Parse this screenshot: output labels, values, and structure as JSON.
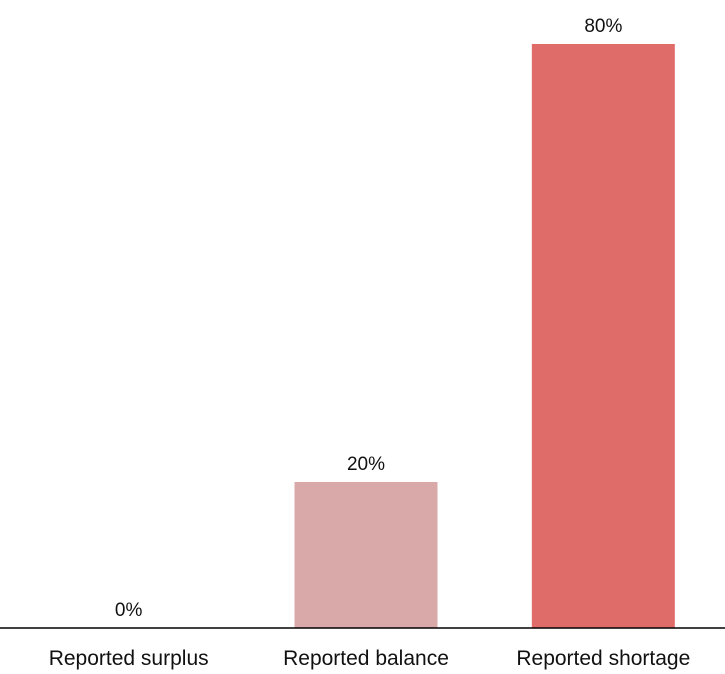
{
  "chart_data": {
    "type": "bar",
    "title": "",
    "xlabel": "",
    "ylabel": "",
    "categories": [
      "Reported surplus",
      "Reported balance",
      "Reported shortage"
    ],
    "values": [
      0,
      20,
      80
    ],
    "value_labels": [
      "0%",
      "20%",
      "80%"
    ],
    "unit": "%",
    "ylim": [
      0,
      80
    ],
    "grid": false,
    "legend": "none",
    "bar_colors": [
      "#d9a8a8",
      "#d9a8a8",
      "#e06c69"
    ]
  }
}
